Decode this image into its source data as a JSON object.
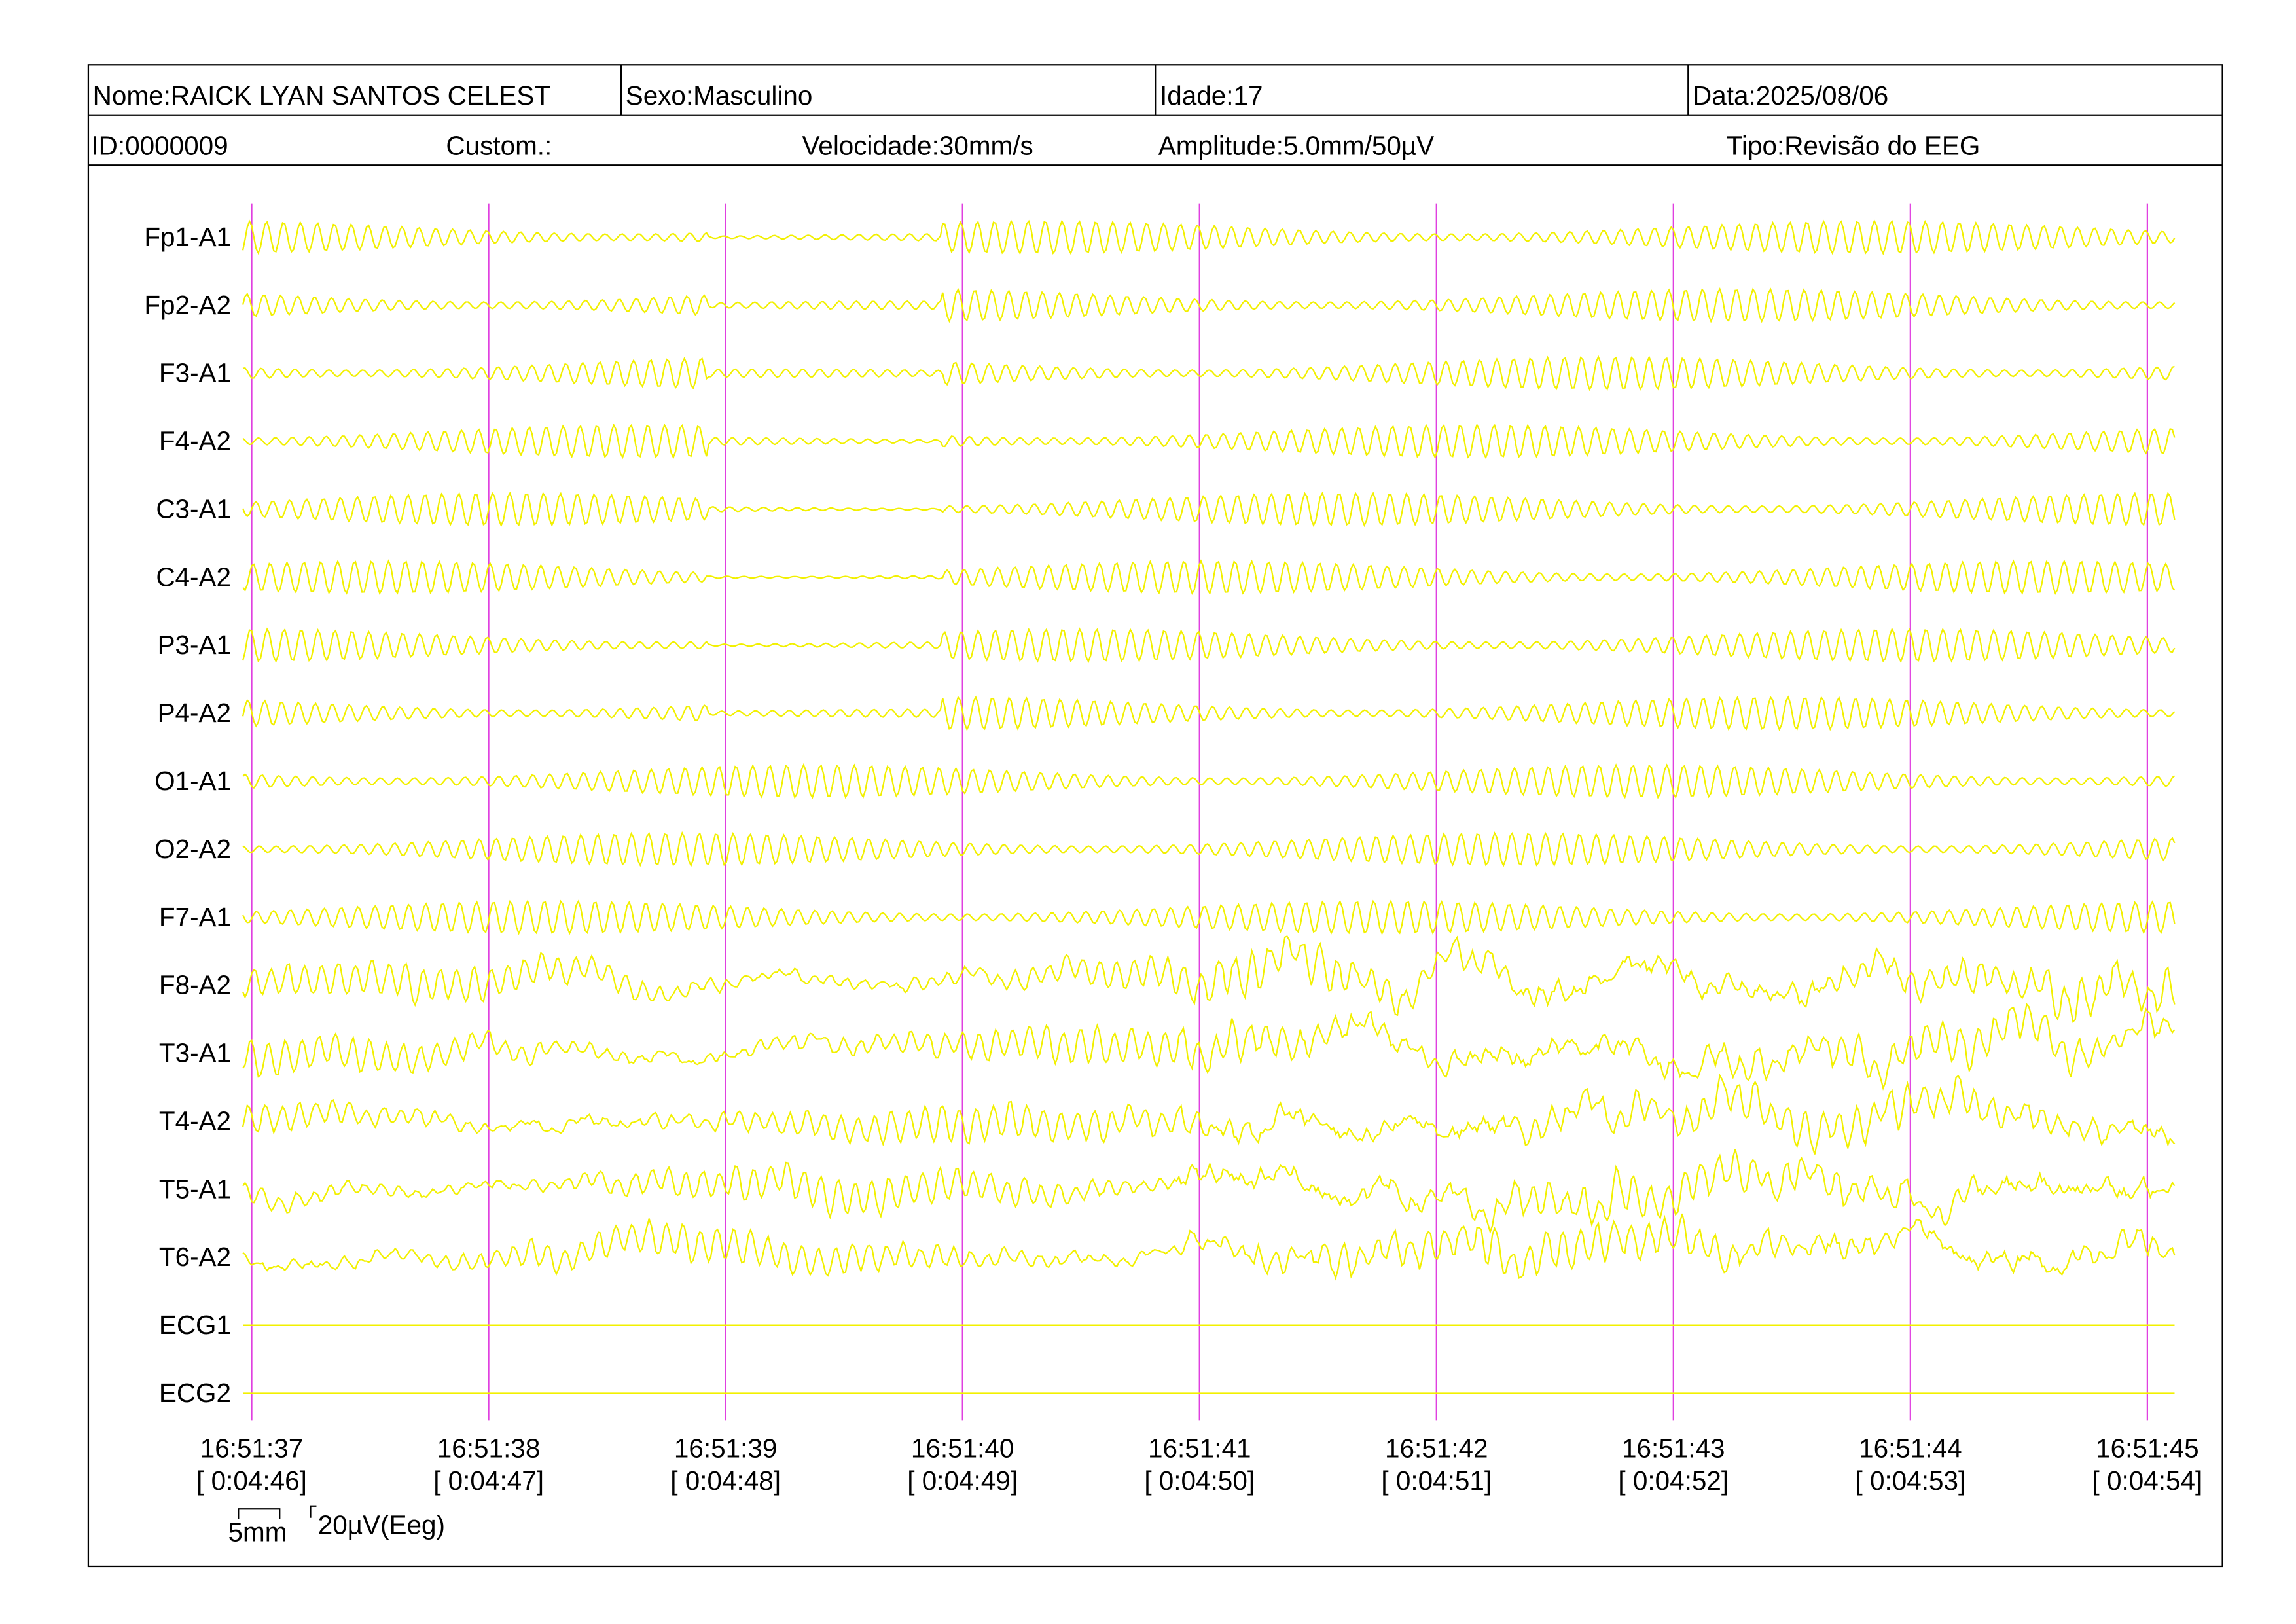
{
  "header": {
    "row1": [
      "Nome:RAICK LYAN SANTOS CELEST",
      "Sexo:Masculino",
      "Idade:17",
      "Data:2025/08/06"
    ],
    "row2": [
      "ID:0000009",
      "Custom.:",
      "Velocidade:30mm/s",
      "Amplitude:5.0mm/50µV",
      "Tipo:Revisão do EEG"
    ]
  },
  "channels": [
    "Fp1-A1",
    "Fp2-A2",
    "F3-A1",
    "F4-A2",
    "C3-A1",
    "C4-A2",
    "P3-A1",
    "P4-A2",
    "O1-A1",
    "O2-A2",
    "F7-A1",
    "F8-A2",
    "T3-A1",
    "T4-A2",
    "T5-A1",
    "T6-A2",
    "ECG1",
    "ECG2"
  ],
  "time_marks": [
    {
      "time": "16:51:37",
      "elapsed": "[ 0:04:46]"
    },
    {
      "time": "16:51:38",
      "elapsed": "[ 0:04:47]"
    },
    {
      "time": "16:51:39",
      "elapsed": "[ 0:04:48]"
    },
    {
      "time": "16:51:40",
      "elapsed": "[ 0:04:49]"
    },
    {
      "time": "16:51:41",
      "elapsed": "[ 0:04:50]"
    },
    {
      "time": "16:51:42",
      "elapsed": "[ 0:04:51]"
    },
    {
      "time": "16:51:43",
      "elapsed": "[ 0:04:52]"
    },
    {
      "time": "16:51:44",
      "elapsed": "[ 0:04:53]"
    },
    {
      "time": "16:51:45",
      "elapsed": "[ 0:04:54]"
    }
  ],
  "scale": {
    "length": "5mm",
    "amplitude": "20µV(Eeg)"
  }
}
